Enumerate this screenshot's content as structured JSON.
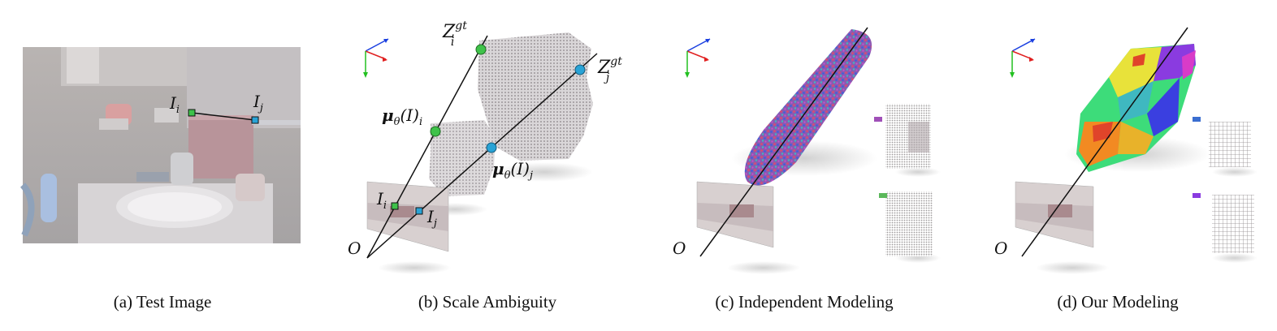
{
  "captions": {
    "a": "(a) Test Image",
    "b": "(b) Scale Ambiguity",
    "c": "(c) Independent Modeling",
    "d": "(d) Our Modeling"
  },
  "labels": {
    "Ii": "I",
    "Ii_sub": "i",
    "Ij": "I",
    "Ij_sub": "j",
    "Zi": "Z",
    "Zi_sub": "i",
    "Zi_sup": "gt",
    "Zj": "Z",
    "Zj_sub": "j",
    "Zj_sup": "gt",
    "mu": "μ",
    "theta": "θ",
    "arg": "(I)",
    "mu_i_sub": "i",
    "mu_j_sub": "j",
    "origin": "O"
  },
  "colors": {
    "marker_i": "#3fc24a",
    "marker_j": "#29a3d6",
    "axis_x": "#e02020",
    "axis_y": "#22c020",
    "axis_z": "#1a3fe0",
    "legend_purple": "#a050b8",
    "legend_green": "#5bb85b",
    "legend_blue": "#3a6ed0",
    "legend_violet": "#8a3be0"
  }
}
